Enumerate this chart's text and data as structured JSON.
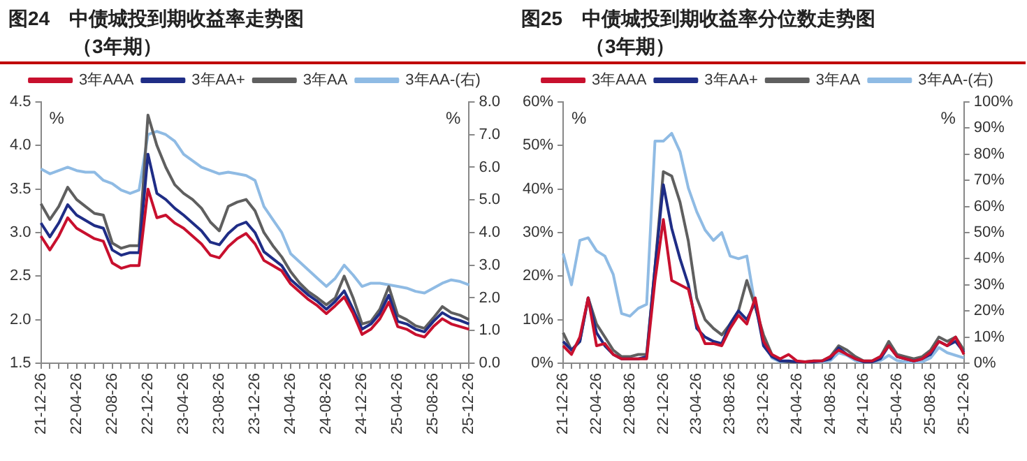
{
  "chart_data": [
    {
      "type": "line",
      "title": "图24　中债城投到期收益率走势图",
      "subtitle": "（3年期）",
      "ylabel": "%",
      "y2label": "%",
      "legend": "top",
      "grid": false,
      "marker": "none",
      "line_style": "solid",
      "categories": [
        "21-12-26",
        null,
        null,
        null,
        "22-04-26",
        null,
        null,
        null,
        "22-08-26",
        null,
        null,
        null,
        "22-12-26",
        null,
        null,
        null,
        "23-04-26",
        null,
        null,
        null,
        "23-08-26",
        null,
        null,
        null,
        "23-12-26",
        null,
        null,
        null,
        "24-04-26",
        null,
        null,
        null,
        "24-08-26",
        null,
        null,
        null,
        "24-12-26",
        null,
        null,
        null,
        "25-04-26",
        null,
        null,
        null,
        "25-08-26",
        null,
        null,
        null,
        "25-12-26"
      ],
      "ylim": [
        1.5,
        4.5
      ],
      "yticks": [
        1.5,
        {
          "value": 2,
          "label": "2.0"
        },
        2.5,
        {
          "value": 3,
          "label": "3.0"
        },
        3.5,
        {
          "value": 4,
          "label": "4.0"
        },
        4.5
      ],
      "y2lim": [
        0,
        8
      ],
      "y2ticks": [
        {
          "value": 0,
          "label": "0.0"
        },
        {
          "value": 1,
          "label": "1.0"
        },
        {
          "value": 2,
          "label": "2.0"
        },
        {
          "value": 3,
          "label": "3.0"
        },
        {
          "value": 4,
          "label": "4.0"
        },
        {
          "value": 5,
          "label": "5.0"
        },
        {
          "value": 6,
          "label": "6.0"
        },
        {
          "value": 7,
          "label": "7.0"
        },
        {
          "value": 8,
          "label": "8.0"
        }
      ],
      "series": [
        {
          "name": "3年AAA",
          "color": "#c8102e",
          "values": [
            2.96,
            2.8,
            2.96,
            3.17,
            3.05,
            2.99,
            2.93,
            2.9,
            2.65,
            2.59,
            2.62,
            2.62,
            3.5,
            3.17,
            3.2,
            3.11,
            3.05,
            2.96,
            2.87,
            2.74,
            2.71,
            2.84,
            2.93,
            2.99,
            2.87,
            2.68,
            2.62,
            2.56,
            2.41,
            2.32,
            2.23,
            2.16,
            2.07,
            2.16,
            2.26,
            2.07,
            1.83,
            1.89,
            2.01,
            2.2,
            1.92,
            1.89,
            1.83,
            1.8,
            1.92,
            2.01,
            1.95,
            1.92,
            1.89
          ]
        },
        {
          "name": "3年AA+",
          "color": "#1f2d86",
          "values": [
            3.11,
            2.95,
            3.11,
            3.32,
            3.2,
            3.14,
            3.08,
            3.05,
            2.8,
            2.74,
            2.77,
            2.77,
            3.9,
            3.45,
            3.38,
            3.28,
            3.2,
            3.11,
            3.02,
            2.89,
            2.86,
            2.99,
            3.08,
            3.12,
            3.0,
            2.78,
            2.7,
            2.62,
            2.46,
            2.37,
            2.28,
            2.21,
            2.12,
            2.21,
            2.33,
            2.12,
            1.89,
            1.95,
            2.07,
            2.28,
            1.98,
            1.95,
            1.89,
            1.86,
            1.98,
            2.08,
            2.02,
            1.99,
            1.95
          ]
        },
        {
          "name": "3年AA",
          "color": "#5f5f5f",
          "values": [
            3.33,
            3.15,
            3.3,
            3.52,
            3.38,
            3.3,
            3.22,
            3.2,
            2.88,
            2.82,
            2.85,
            2.85,
            4.35,
            4.0,
            3.75,
            3.55,
            3.45,
            3.38,
            3.28,
            3.12,
            3.02,
            3.3,
            3.35,
            3.38,
            3.25,
            3.0,
            2.85,
            2.72,
            2.55,
            2.42,
            2.32,
            2.25,
            2.17,
            2.25,
            2.5,
            2.25,
            1.95,
            1.98,
            2.12,
            2.38,
            2.05,
            2.0,
            1.93,
            1.9,
            2.02,
            2.15,
            2.08,
            2.05,
            2.0
          ]
        },
        {
          "name": "3年AA-(右)",
          "color": "#8fbbe4",
          "axis": "y2",
          "values": [
            5.95,
            5.8,
            5.9,
            6.0,
            5.9,
            5.85,
            5.85,
            5.6,
            5.5,
            5.3,
            5.2,
            5.3,
            7.0,
            7.1,
            7.0,
            6.8,
            6.4,
            6.2,
            6.0,
            5.9,
            5.8,
            5.85,
            5.8,
            5.75,
            5.6,
            4.8,
            4.4,
            4.0,
            3.35,
            3.1,
            2.85,
            2.6,
            2.35,
            2.6,
            3.0,
            2.7,
            2.35,
            2.45,
            2.45,
            2.4,
            2.35,
            2.3,
            2.2,
            2.15,
            2.3,
            2.45,
            2.55,
            2.5,
            2.4
          ]
        }
      ]
    },
    {
      "type": "line",
      "title": "图25　中债城投到期收益率分位数走势图",
      "subtitle": "（3年期）",
      "ylabel": "%",
      "y2label": "%",
      "legend": "top",
      "grid": false,
      "marker": "none",
      "line_style": "solid",
      "categories": [
        "21-12-26",
        null,
        null,
        null,
        "22-04-26",
        null,
        null,
        null,
        "22-08-26",
        null,
        null,
        null,
        "22-12-26",
        null,
        null,
        null,
        "23-04-26",
        null,
        null,
        null,
        "23-08-26",
        null,
        null,
        null,
        "23-12-26",
        null,
        null,
        null,
        "24-04-26",
        null,
        null,
        null,
        "24-08-26",
        null,
        null,
        null,
        "24-12-26",
        null,
        null,
        null,
        "25-04-26",
        null,
        null,
        null,
        "25-08-26",
        null,
        null,
        null,
        "25-12-26"
      ],
      "ylim": [
        0,
        60
      ],
      "yticks": [
        {
          "value": 0,
          "label": "0%"
        },
        {
          "value": 10,
          "label": "10%"
        },
        {
          "value": 20,
          "label": "20%"
        },
        {
          "value": 30,
          "label": "30%"
        },
        {
          "value": 40,
          "label": "40%"
        },
        {
          "value": 50,
          "label": "50%"
        },
        {
          "value": 60,
          "label": "60%"
        }
      ],
      "y2lim": [
        0,
        100
      ],
      "y2ticks": [
        {
          "value": 0,
          "label": "0%"
        },
        {
          "value": 10,
          "label": "10%"
        },
        {
          "value": 20,
          "label": "20%"
        },
        {
          "value": 30,
          "label": "30%"
        },
        {
          "value": 40,
          "label": "40%"
        },
        {
          "value": 50,
          "label": "50%"
        },
        {
          "value": 60,
          "label": "60%"
        },
        {
          "value": 70,
          "label": "70%"
        },
        {
          "value": 80,
          "label": "80%"
        },
        {
          "value": 90,
          "label": "90%"
        },
        {
          "value": 100,
          "label": "100%"
        }
      ],
      "series": [
        {
          "name": "3年AAA",
          "color": "#c8102e",
          "values": [
            4,
            2,
            6,
            15,
            4,
            4.5,
            2,
            1,
            1,
            1,
            1,
            19,
            33,
            19,
            18,
            17,
            9,
            4.5,
            4.5,
            4,
            8,
            11,
            9,
            15,
            5,
            2,
            1,
            2,
            0.5,
            0.3,
            0.5,
            0.5,
            1.5,
            3,
            2,
            1,
            0.5,
            0.5,
            1.5,
            4,
            1.5,
            1,
            0.5,
            1,
            2.5,
            5,
            4,
            6,
            2
          ]
        },
        {
          "name": "3年AA+",
          "color": "#1f2d86",
          "values": [
            5,
            3,
            5,
            15,
            7,
            4,
            2,
            1,
            1,
            1,
            1.5,
            22,
            41,
            31,
            24,
            18,
            8,
            6,
            5,
            4.5,
            9,
            12,
            10,
            14,
            4,
            1.5,
            0.5,
            0.5,
            0.3,
            0.3,
            0.3,
            0.5,
            1,
            3.5,
            2,
            1,
            0.3,
            0.3,
            1,
            4,
            1.5,
            1,
            0.5,
            1,
            2,
            5,
            4,
            5,
            2.5
          ]
        },
        {
          "name": "3年AA",
          "color": "#5f5f5f",
          "values": [
            7,
            3,
            5,
            15,
            9,
            6,
            3,
            1.5,
            1.5,
            2,
            2,
            22,
            44,
            43,
            37,
            28,
            15,
            10,
            8,
            6.5,
            9,
            12,
            19,
            13,
            6.5,
            2,
            0.5,
            0.3,
            0.3,
            0.3,
            0.5,
            0.5,
            1.5,
            4,
            3,
            1.5,
            0.5,
            0.5,
            1.5,
            5,
            2,
            1.5,
            1,
            1.5,
            3,
            6,
            5,
            6,
            3
          ]
        },
        {
          "name": "3年AA-(右)",
          "color": "#8fbbe4",
          "axis": "y2",
          "values": [
            42,
            30,
            47,
            48,
            43,
            41,
            34,
            19,
            18,
            21,
            22.5,
            85,
            85,
            88,
            81,
            67,
            58,
            51,
            47,
            50,
            41,
            40,
            41,
            22,
            9,
            2,
            0.5,
            0,
            0,
            0,
            0,
            0.5,
            1,
            4,
            3,
            1,
            0,
            0.5,
            1,
            3,
            1,
            0.5,
            0,
            0.5,
            2,
            6,
            4,
            3,
            2
          ]
        }
      ]
    }
  ]
}
